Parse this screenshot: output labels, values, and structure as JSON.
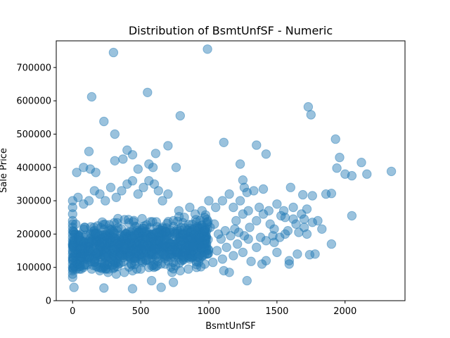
{
  "chart_data": {
    "type": "scatter",
    "title": "Distribution of BsmtUnfSF - Numeric",
    "xlabel": "BsmtUnfSF",
    "ylabel": "Sale Price",
    "xlim": [
      -120,
      2440
    ],
    "ylim": [
      0,
      780000
    ],
    "xticks": [
      0,
      500,
      1000,
      1500,
      2000
    ],
    "yticks": [
      0,
      100000,
      200000,
      300000,
      400000,
      500000,
      600000,
      700000
    ],
    "grid": false,
    "legend": "none",
    "marker_color": "#1f77b4",
    "marker_alpha": 0.45,
    "series": [
      {
        "points": [
          [
            300,
            745000
          ],
          [
            990,
            755000
          ],
          [
            550,
            625000
          ],
          [
            140,
            612000
          ],
          [
            230,
            538000
          ],
          [
            790,
            555000
          ],
          [
            1730,
            582000
          ],
          [
            1750,
            558000
          ],
          [
            310,
            500000
          ],
          [
            1110,
            475000
          ],
          [
            1350,
            467000
          ],
          [
            1420,
            440000
          ],
          [
            1930,
            485000
          ],
          [
            1960,
            430000
          ],
          [
            2120,
            415000
          ],
          [
            2340,
            388000
          ],
          [
            2050,
            375000
          ],
          [
            2160,
            380000
          ],
          [
            1940,
            398000
          ],
          [
            2000,
            380000
          ],
          [
            120,
            448000
          ],
          [
            400,
            452000
          ],
          [
            700,
            465000
          ],
          [
            610,
            442000
          ],
          [
            440,
            438000
          ],
          [
            480,
            395000
          ],
          [
            560,
            410000
          ],
          [
            590,
            400000
          ],
          [
            760,
            400000
          ],
          [
            310,
            420000
          ],
          [
            370,
            425000
          ],
          [
            80,
            400000
          ],
          [
            130,
            395000
          ],
          [
            170,
            385000
          ],
          [
            30,
            385000
          ],
          [
            1230,
            410000
          ],
          [
            1250,
            362000
          ],
          [
            1260,
            340000
          ],
          [
            1280,
            325000
          ],
          [
            1330,
            330000
          ],
          [
            1400,
            335000
          ],
          [
            1600,
            340000
          ],
          [
            1690,
            318000
          ],
          [
            1760,
            315000
          ],
          [
            1860,
            320000
          ],
          [
            1900,
            322000
          ],
          [
            2050,
            255000
          ],
          [
            1830,
            215000
          ],
          [
            1900,
            170000
          ],
          [
            1780,
            140000
          ],
          [
            1590,
            120000
          ],
          [
            1590,
            110000
          ],
          [
            1650,
            140000
          ],
          [
            1740,
            138000
          ],
          [
            1280,
            60000
          ],
          [
            230,
            38000
          ],
          [
            440,
            36000
          ],
          [
            650,
            40000
          ],
          [
            10,
            40000
          ],
          [
            580,
            60000
          ],
          [
            740,
            55000
          ],
          [
            1110,
            90000
          ],
          [
            1150,
            85000
          ],
          [
            1310,
            118000
          ],
          [
            1390,
            110000
          ],
          [
            1420,
            120000
          ],
          [
            1500,
            145000
          ],
          [
            1560,
            250000
          ],
          [
            1620,
            280000
          ],
          [
            1680,
            260000
          ],
          [
            1700,
            245000
          ],
          [
            1720,
            275000
          ],
          [
            1760,
            235000
          ],
          [
            1800,
            240000
          ],
          [
            1480,
            215000
          ],
          [
            1500,
            290000
          ],
          [
            1550,
            270000
          ],
          [
            1450,
            230000
          ],
          [
            1400,
            260000
          ],
          [
            1350,
            240000
          ],
          [
            1300,
            220000
          ],
          [
            1250,
            260000
          ],
          [
            1200,
            240000
          ],
          [
            1150,
            320000
          ],
          [
            1100,
            300000
          ],
          [
            1050,
            280000
          ],
          [
            1000,
            300000
          ],
          [
            950,
            270000
          ],
          [
            900,
            260000
          ],
          [
            860,
            280000
          ],
          [
            820,
            250000
          ],
          [
            780,
            270000
          ],
          [
            740,
            240000
          ],
          [
            700,
            320000
          ],
          [
            660,
            300000
          ],
          [
            630,
            330000
          ],
          [
            600,
            350000
          ],
          [
            560,
            360000
          ],
          [
            520,
            340000
          ],
          [
            480,
            320000
          ],
          [
            440,
            360000
          ],
          [
            400,
            350000
          ],
          [
            360,
            330000
          ],
          [
            320,
            310000
          ],
          [
            280,
            340000
          ],
          [
            240,
            300000
          ],
          [
            200,
            320000
          ],
          [
            160,
            330000
          ],
          [
            120,
            300000
          ],
          [
            80,
            290000
          ],
          [
            40,
            310000
          ],
          [
            0,
            300000
          ],
          [
            0,
            280000
          ],
          [
            0,
            260000
          ],
          [
            0,
            240000
          ],
          [
            0,
            230000
          ],
          [
            0,
            220000
          ],
          [
            0,
            210000
          ],
          [
            0,
            200000
          ],
          [
            0,
            190000
          ],
          [
            0,
            180000
          ],
          [
            0,
            170000
          ],
          [
            0,
            160000
          ],
          [
            0,
            150000
          ],
          [
            0,
            140000
          ],
          [
            0,
            130000
          ],
          [
            0,
            120000
          ],
          [
            0,
            110000
          ],
          [
            0,
            100000
          ],
          [
            0,
            90000
          ],
          [
            0,
            80000
          ],
          [
            0,
            70000
          ],
          [
            1230,
            300000
          ],
          [
            1180,
            280000
          ],
          [
            1290,
            270000
          ],
          [
            1370,
            280000
          ],
          [
            1440,
            270000
          ],
          [
            1530,
            255000
          ],
          [
            1620,
            245000
          ],
          [
            1700,
            220000
          ],
          [
            1640,
            230000
          ],
          [
            1560,
            200000
          ],
          [
            1470,
            195000
          ],
          [
            1380,
            190000
          ],
          [
            1290,
            185000
          ],
          [
            1210,
            170000
          ],
          [
            1130,
            160000
          ],
          [
            1060,
            150000
          ],
          [
            990,
            140000
          ],
          [
            920,
            130000
          ],
          [
            860,
            125000
          ],
          [
            800,
            120000
          ],
          [
            740,
            115000
          ],
          [
            680,
            110000
          ],
          [
            620,
            105000
          ],
          [
            560,
            100000
          ],
          [
            500,
            95000
          ],
          [
            440,
            90000
          ],
          [
            380,
            85000
          ],
          [
            320,
            80000
          ],
          [
            260,
            85000
          ],
          [
            200,
            90000
          ],
          [
            140,
            95000
          ],
          [
            80,
            100000
          ],
          [
            1350,
            160000
          ],
          [
            1420,
            180000
          ],
          [
            1480,
            175000
          ],
          [
            1520,
            190000
          ],
          [
            1580,
            210000
          ],
          [
            1660,
            205000
          ],
          [
            1720,
            200000
          ],
          [
            1250,
            145000
          ],
          [
            1180,
            135000
          ],
          [
            1100,
            125000
          ],
          [
            1030,
            115000
          ],
          [
            970,
            110000
          ],
          [
            910,
            100000
          ],
          [
            850,
            95000
          ],
          [
            790,
            90000
          ],
          [
            730,
            85000
          ],
          [
            950,
            200000
          ],
          [
            930,
            190000
          ],
          [
            970,
            210000
          ],
          [
            1010,
            220000
          ],
          [
            1040,
            230000
          ],
          [
            1070,
            200000
          ],
          [
            1090,
            185000
          ],
          [
            1120,
            210000
          ],
          [
            1160,
            195000
          ],
          [
            1190,
            215000
          ],
          [
            1220,
            205000
          ],
          [
            1260,
            195000
          ]
        ],
        "cluster": {
          "x_range": [
            0,
            1000
          ],
          "y_range": [
            95000,
            270000
          ],
          "count": 900
        }
      }
    ]
  }
}
